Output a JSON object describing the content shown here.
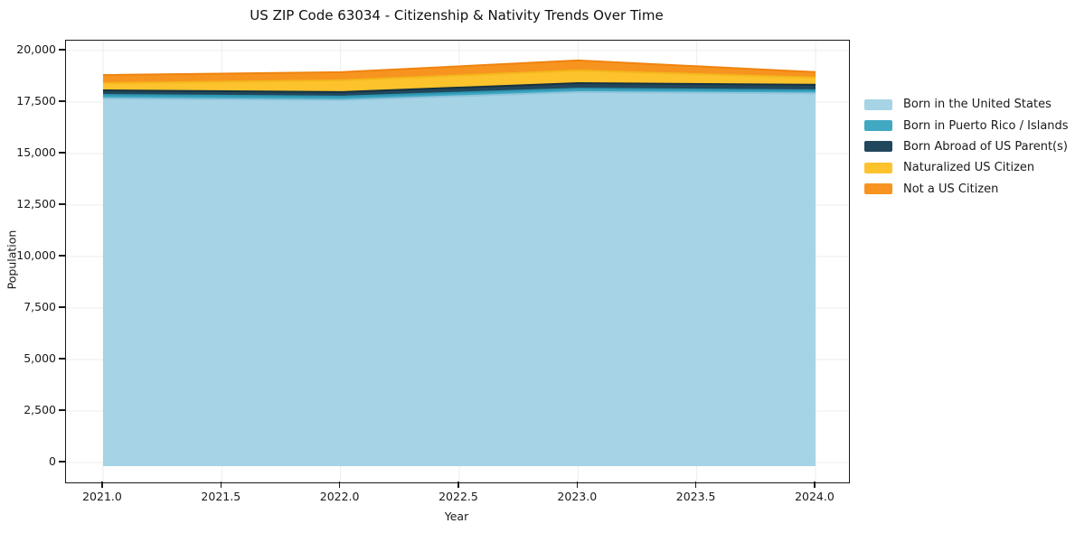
{
  "chart_data": {
    "type": "area",
    "stacked": true,
    "title": "US ZIP Code 63034 - Citizenship & Nativity Trends Over Time",
    "xlabel": "Year",
    "ylabel": "Population",
    "x": [
      2021,
      2022,
      2023,
      2024
    ],
    "series": [
      {
        "name": "Born in the United States",
        "color": "#a6d4e6",
        "edge": "#92c5dd",
        "values": [
          17675,
          17590,
          17980,
          17920
        ]
      },
      {
        "name": "Born in Puerto Rico / Islands",
        "color": "#41a8c2",
        "edge": "#2e96b2",
        "values": [
          175,
          175,
          175,
          155
        ]
      },
      {
        "name": "Born Abroad of US Parent(s)",
        "color": "#21475c",
        "edge": "#16323f",
        "values": [
          220,
          220,
          265,
          265
        ]
      },
      {
        "name": "Naturalized US Citizen",
        "color": "#fcc32d",
        "edge": "#f4b71c",
        "values": [
          350,
          570,
          615,
          350
        ]
      },
      {
        "name": "Not a US Citizen",
        "color": "#f7941f",
        "edge": "#ef8410",
        "values": [
          395,
          395,
          485,
          265
        ]
      }
    ],
    "totals": [
      18815,
      18950,
      19520,
      18955
    ],
    "x_ticks": [
      2021.0,
      2021.5,
      2022.0,
      2022.5,
      2023.0,
      2023.5,
      2024.0
    ],
    "x_tick_labels": [
      "2021.0",
      "2021.5",
      "2022.0",
      "2022.5",
      "2023.0",
      "2023.5",
      "2024.0"
    ],
    "y_ticks": [
      0,
      2500,
      5000,
      7500,
      10000,
      12500,
      15000,
      17500,
      20000
    ],
    "y_tick_labels": [
      "0",
      "2,500",
      "5,000",
      "7,500",
      "10,000",
      "12,500",
      "15,000",
      "17,500",
      "20,000"
    ],
    "xlim": [
      2020.844,
      2024.141
    ],
    "ylim": [
      -965,
      20482
    ],
    "grid": true,
    "grid_color": "#ededed",
    "frame_color": "#1a1a1a",
    "legend_position": "right of plot, no frame"
  }
}
